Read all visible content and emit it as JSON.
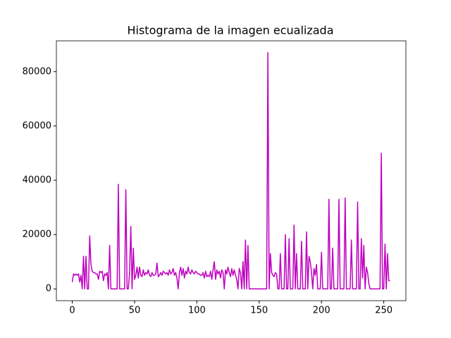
{
  "chart_data": {
    "type": "line",
    "title": "Histograma de la imagen ecualizada",
    "color": "#bf00bf",
    "xlim": [
      -12.75,
      267.75
    ],
    "ylim": [
      -4350,
      91350
    ],
    "xticks": [
      0,
      50,
      100,
      150,
      200,
      250
    ],
    "yticks": [
      0,
      20000,
      40000,
      60000,
      80000
    ],
    "x": [
      0,
      1,
      2,
      3,
      4,
      5,
      6,
      7,
      8,
      9,
      10,
      11,
      12,
      13,
      14,
      15,
      16,
      17,
      18,
      19,
      20,
      21,
      22,
      23,
      24,
      25,
      26,
      27,
      28,
      29,
      30,
      31,
      32,
      33,
      34,
      35,
      36,
      37,
      38,
      39,
      40,
      41,
      42,
      43,
      44,
      45,
      46,
      47,
      48,
      49,
      50,
      51,
      52,
      53,
      54,
      55,
      56,
      57,
      58,
      59,
      60,
      61,
      62,
      63,
      64,
      65,
      66,
      67,
      68,
      69,
      70,
      71,
      72,
      73,
      74,
      75,
      76,
      77,
      78,
      79,
      80,
      81,
      82,
      83,
      84,
      85,
      86,
      87,
      88,
      89,
      90,
      91,
      92,
      93,
      94,
      95,
      96,
      97,
      98,
      99,
      100,
      101,
      102,
      103,
      104,
      105,
      106,
      107,
      108,
      109,
      110,
      111,
      112,
      113,
      114,
      115,
      116,
      117,
      118,
      119,
      120,
      121,
      122,
      123,
      124,
      125,
      126,
      127,
      128,
      129,
      130,
      131,
      132,
      133,
      134,
      135,
      136,
      137,
      138,
      139,
      140,
      141,
      142,
      143,
      144,
      145,
      146,
      147,
      148,
      149,
      150,
      151,
      152,
      153,
      154,
      155,
      156,
      157,
      158,
      159,
      160,
      161,
      162,
      163,
      164,
      165,
      166,
      167,
      168,
      169,
      170,
      171,
      172,
      173,
      174,
      175,
      176,
      177,
      178,
      179,
      180,
      181,
      182,
      183,
      184,
      185,
      186,
      187,
      188,
      189,
      190,
      191,
      192,
      193,
      194,
      195,
      196,
      197,
      198,
      199,
      200,
      201,
      202,
      203,
      204,
      205,
      206,
      207,
      208,
      209,
      210,
      211,
      212,
      213,
      214,
      215,
      216,
      217,
      218,
      219,
      220,
      221,
      222,
      223,
      224,
      225,
      226,
      227,
      228,
      229,
      230,
      231,
      232,
      233,
      234,
      235,
      236,
      237,
      238,
      239,
      240,
      241,
      242,
      243,
      244,
      245,
      246,
      247,
      248,
      249,
      250,
      251,
      252,
      253,
      254,
      255
    ],
    "values": [
      2500,
      5500,
      5000,
      5500,
      5000,
      5500,
      2500,
      5000,
      0,
      12000,
      0,
      12000,
      0,
      0,
      19500,
      9000,
      6500,
      6000,
      6000,
      5500,
      5500,
      3500,
      6500,
      6000,
      6500,
      3000,
      5500,
      5000,
      6000,
      0,
      16000,
      0,
      0,
      0,
      0,
      0,
      0,
      38500,
      0,
      0,
      0,
      0,
      0,
      36500,
      0,
      0,
      6000,
      23000,
      0,
      15000,
      3500,
      5000,
      8000,
      4000,
      8000,
      5000,
      4500,
      7000,
      5000,
      6000,
      5500,
      7000,
      5000,
      4500,
      6000,
      5000,
      5000,
      5500,
      9500,
      4500,
      5000,
      6000,
      5000,
      6500,
      6000,
      5500,
      6000,
      5000,
      7000,
      5500,
      6000,
      7500,
      5000,
      6000,
      4000,
      0,
      6000,
      8000,
      5000,
      7500,
      4000,
      6500,
      5500,
      8000,
      6000,
      5500,
      7000,
      6000,
      5500,
      6500,
      6000,
      5500,
      5500,
      5000,
      5000,
      6000,
      4000,
      6500,
      4500,
      5000,
      4500,
      6500,
      3500,
      7000,
      10000,
      3500,
      7000,
      5500,
      6500,
      4000,
      7000,
      6000,
      0,
      7000,
      5500,
      8000,
      6000,
      4500,
      7500,
      5000,
      7000,
      5000,
      3500,
      0,
      7500,
      6000,
      0,
      10000,
      0,
      18000,
      0,
      16000,
      0,
      0,
      0,
      0,
      0,
      0,
      0,
      0,
      0,
      0,
      0,
      0,
      0,
      0,
      0,
      87000,
      0,
      13000,
      6000,
      5000,
      4500,
      6000,
      5500,
      0,
      0,
      13000,
      0,
      0,
      0,
      20000,
      0,
      0,
      18500,
      0,
      0,
      0,
      23500,
      0,
      13000,
      0,
      0,
      0,
      17500,
      0,
      0,
      0,
      21000,
      0,
      12000,
      10000,
      6000,
      0,
      7500,
      5000,
      9000,
      0,
      0,
      0,
      13500,
      0,
      0,
      0,
      0,
      0,
      33000,
      0,
      0,
      15000,
      0,
      0,
      0,
      0,
      33000,
      0,
      0,
      0,
      0,
      33500,
      0,
      0,
      0,
      0,
      18000,
      0,
      0,
      0,
      0,
      32000,
      0,
      0,
      18500,
      4000,
      16000,
      0,
      8000,
      6000,
      2000,
      0,
      0,
      0,
      0,
      0,
      0,
      0,
      0,
      0,
      50000,
      0,
      0,
      16500,
      0,
      13000,
      3000,
      3000
    ]
  }
}
